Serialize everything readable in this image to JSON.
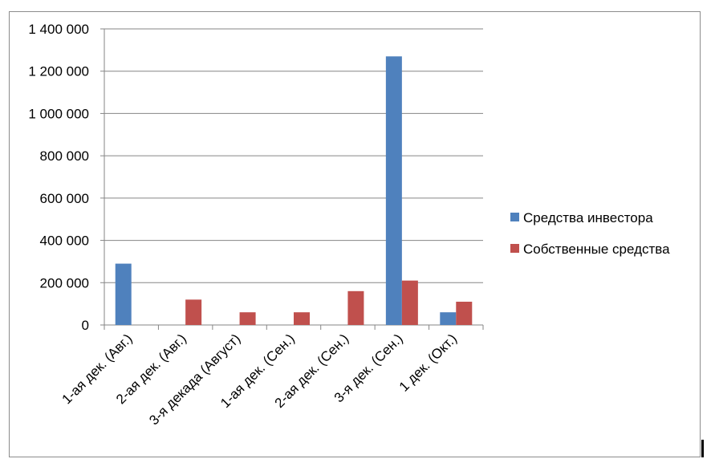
{
  "chart_data": {
    "type": "bar",
    "title": "",
    "xlabel": "",
    "ylabel": "",
    "ylim": [
      0,
      1400000
    ],
    "yticks": [
      0,
      200000,
      400000,
      600000,
      800000,
      1000000,
      1200000,
      1400000
    ],
    "ytick_labels": [
      "0",
      "200 000",
      "400 000",
      "600 000",
      "800 000",
      "1 000 000",
      "1 200 000",
      "1 400 000"
    ],
    "grid": true,
    "legend_position": "right",
    "categories": [
      "1-ая дек. (Авг.)",
      "2-ая дек. (Авг.)",
      "3-я декада (Август)",
      "1-ая дек. (Сен.)",
      "2-ая дек. (Сен.)",
      "3-я дек. (Сен.)",
      "1 дек. (Окт.)"
    ],
    "series": [
      {
        "name": "Средства инвестора",
        "color": "#4f81bd",
        "values": [
          290000,
          0,
          0,
          0,
          0,
          1270000,
          60000
        ]
      },
      {
        "name": "Собственные средства",
        "color": "#c0504d",
        "values": [
          0,
          120000,
          60000,
          60000,
          160000,
          210000,
          110000
        ]
      }
    ]
  }
}
